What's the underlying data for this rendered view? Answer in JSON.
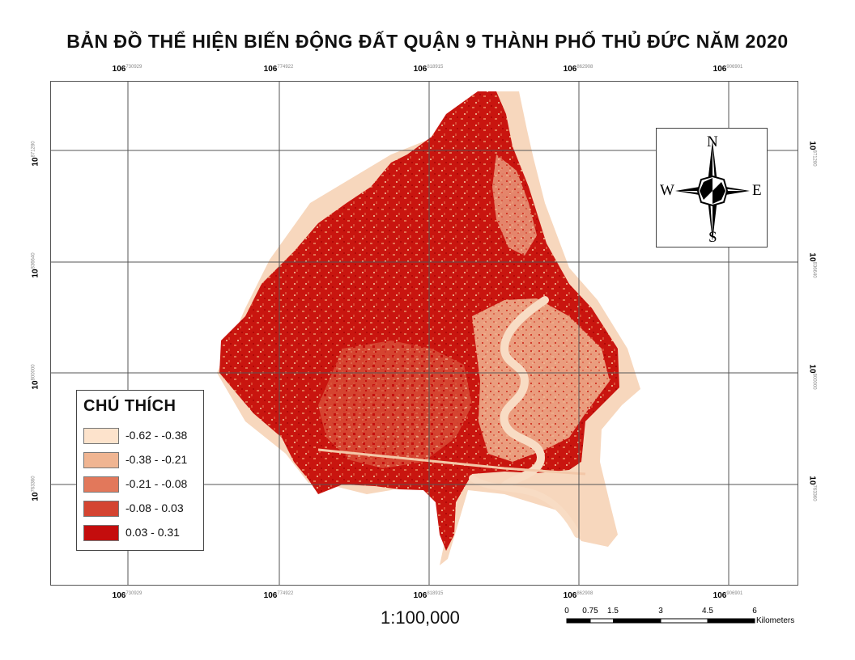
{
  "title": "BẢN ĐỒ THỂ HIỆN BIẾN ĐỘNG ĐẤT QUẬN 9 THÀNH PHỐ THỦ ĐỨC NĂM 2020",
  "grid": {
    "lon_labels": [
      {
        "deg": "106",
        "min": "730929"
      },
      {
        "deg": "106",
        "min": "774922"
      },
      {
        "deg": "106",
        "min": "818915"
      },
      {
        "deg": "106",
        "min": "862908"
      },
      {
        "deg": "106",
        "min": "906901"
      }
    ],
    "lat_labels": [
      {
        "deg": "10",
        "min": "871280"
      },
      {
        "deg": "10",
        "min": "836640"
      },
      {
        "deg": "10",
        "min": "800000"
      },
      {
        "deg": "10",
        "min": "763360"
      }
    ]
  },
  "compass": {
    "n": "N",
    "s": "S",
    "e": "E",
    "w": "W"
  },
  "legend": {
    "title": "CHÚ THÍCH",
    "items": [
      {
        "label": "-0.62 - -0.38",
        "color": "#fde3cc"
      },
      {
        "label": "-0.38 - -0.21",
        "color": "#f0b592"
      },
      {
        "label": "-0.21 - -0.08",
        "color": "#e2785b"
      },
      {
        "label": "-0.08 - 0.03",
        "color": "#d44431"
      },
      {
        "label": "0.03 - 0.31",
        "color": "#c40d0d"
      }
    ]
  },
  "scale": {
    "ratio": "1:100,000",
    "labels": [
      "0",
      "0.75",
      "1.5",
      "3",
      "4.5",
      "6"
    ],
    "unit": "Kilometers"
  }
}
